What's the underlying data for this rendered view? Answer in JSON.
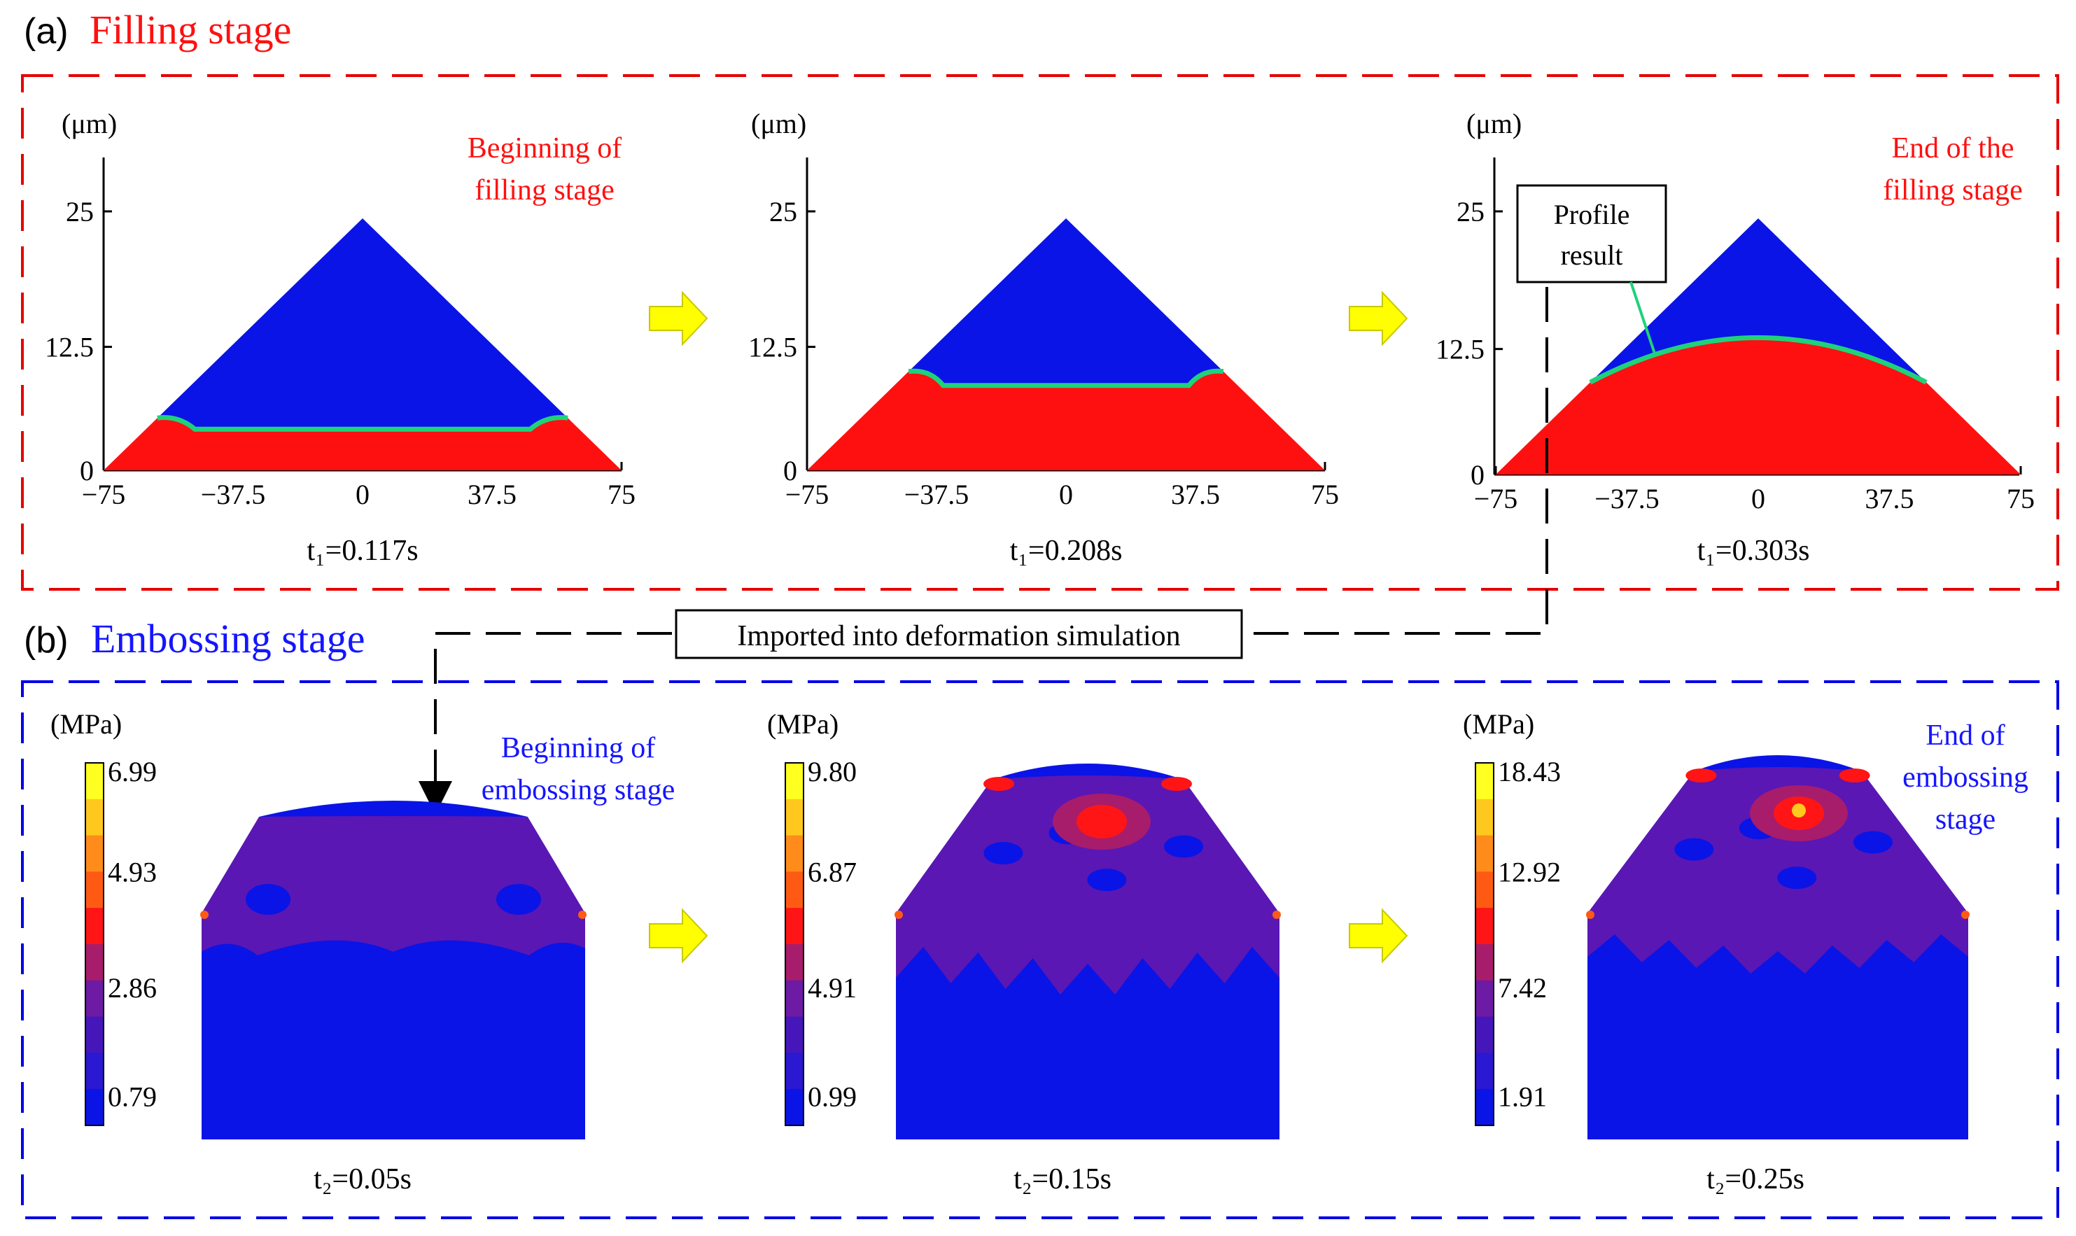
{
  "colors": {
    "fill_red": "#ff1010",
    "fill_blue": "#0a14e6",
    "interface_green": "#1fd27a",
    "purple": "#5a17b4",
    "arrow_yellow": "#ffff00",
    "heading_red": "#ff1010",
    "heading_blue": "#1515ff",
    "frame_red": "#e60000",
    "frame_blue": "#0000e6"
  },
  "section_a": {
    "tag": "(a)",
    "title": "Filling stage",
    "axis_unit": "(μm)",
    "y_ticks": [
      "25",
      "12.5",
      "0"
    ],
    "x_ticks": [
      "−75",
      "−37.5",
      "0",
      "37.5",
      "75"
    ],
    "panels": [
      {
        "time_label": "t₁=0.117s",
        "interface_level": 0.16
      },
      {
        "time_label": "t₁=0.208s",
        "interface_level": 0.33
      },
      {
        "time_label": "t₁=0.303s",
        "interface_level": 0.48
      }
    ],
    "note_begin": [
      "Beginning of",
      "filling stage"
    ],
    "note_end": [
      "End of the",
      "filling stage"
    ],
    "profile_box": [
      "Profile",
      "result"
    ]
  },
  "link_label": "Imported into deformation simulation",
  "section_b": {
    "tag": "(b)",
    "title": "Embossing stage",
    "unit": "(MPa)",
    "note_begin": [
      "Beginning of",
      "embossing stage"
    ],
    "note_end": [
      "End of",
      "embossing",
      "stage"
    ],
    "legend_colors": [
      "#0a14e6",
      "#2a18d2",
      "#4517bb",
      "#6d1aa5",
      "#a81c6c",
      "#ff1515",
      "#ff5a14",
      "#ff8c1a",
      "#ffc81e",
      "#ffff22"
    ],
    "panels": [
      {
        "time_label": "t₂=0.05s",
        "scale_labels": [
          "6.99",
          "4.93",
          "2.86",
          "0.79"
        ]
      },
      {
        "time_label": "t₂=0.15s",
        "scale_labels": [
          "9.80",
          "6.87",
          "4.91",
          "0.99"
        ]
      },
      {
        "time_label": "t₂=0.25s",
        "scale_labels": [
          "18.43",
          "12.92",
          "7.42",
          "1.91"
        ]
      }
    ]
  }
}
